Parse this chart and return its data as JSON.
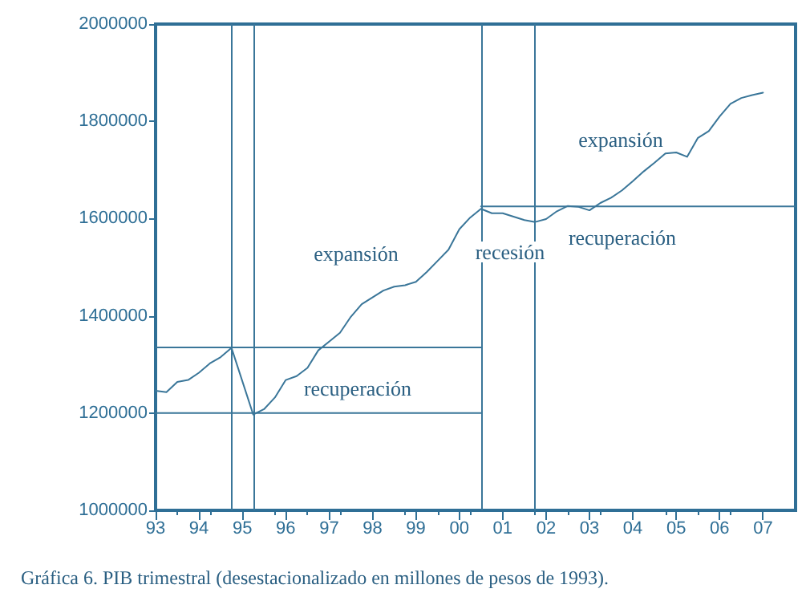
{
  "chart_data": {
    "type": "line",
    "title": "Gráfica 6. PIB trimestral (desestacionalizado en millones de pesos de 1993).",
    "series": [
      {
        "color": "#3a7699",
        "x": [
          1993.0,
          1993.25,
          1993.5,
          1993.75,
          1994.0,
          1994.25,
          1994.5,
          1994.75,
          1995.25,
          1995.5,
          1995.75,
          1996.0,
          1996.25,
          1996.5,
          1996.75,
          1997.0,
          1997.25,
          1997.5,
          1997.75,
          1998.0,
          1998.25,
          1998.5,
          1998.75,
          1999.0,
          1999.25,
          1999.5,
          1999.75,
          2000.0,
          2000.25,
          2000.5,
          2000.75,
          2001.0,
          2001.25,
          2001.5,
          2001.75,
          2002.0,
          2002.25,
          2002.5,
          2002.75,
          2003.0,
          2003.25,
          2003.5,
          2003.75,
          2004.0,
          2004.25,
          2004.5,
          2004.75,
          2005.0,
          2005.25,
          2005.5,
          2005.75,
          2006.0,
          2006.25,
          2006.5,
          2006.75,
          2007.0
        ],
        "values": [
          1246000,
          1243000,
          1264000,
          1268000,
          1283000,
          1302000,
          1315000,
          1334000,
          1197000,
          1208000,
          1232000,
          1268000,
          1276000,
          1293000,
          1329000,
          1347000,
          1365000,
          1398000,
          1424000,
          1438000,
          1452000,
          1460000,
          1463000,
          1470000,
          1490000,
          1513000,
          1536000,
          1578000,
          1602000,
          1620000,
          1611000,
          1611000,
          1604000,
          1597000,
          1593000,
          1599000,
          1615000,
          1626000,
          1624000,
          1617000,
          1632000,
          1643000,
          1658000,
          1677000,
          1697000,
          1715000,
          1734000,
          1736000,
          1727000,
          1766000,
          1780000,
          1810000,
          1836000,
          1848000,
          1854000,
          1859000
        ]
      },
      {
        "color": "#3a7699",
        "x": [
          1993,
          2000.5
        ],
        "values": [
          1335000,
          1335000
        ]
      },
      {
        "color": "#3a7699",
        "x": [
          1993,
          2000.5
        ],
        "values": [
          1200000,
          1200000
        ]
      },
      {
        "color": "#3a7699",
        "x": [
          2000.5,
          2007.75
        ],
        "values": [
          1625000,
          1625000
        ]
      }
    ],
    "xlim": [
      1993,
      2007.75
    ],
    "xticks": [
      {
        "value": 1993,
        "label": "93"
      },
      {
        "value": 1994,
        "label": "94"
      },
      {
        "value": 1995,
        "label": "95"
      },
      {
        "value": 1996,
        "label": "96"
      },
      {
        "value": 1997,
        "label": "97"
      },
      {
        "value": 1998,
        "label": "98"
      },
      {
        "value": 1999,
        "label": "99"
      },
      {
        "value": 2000,
        "label": "00"
      },
      {
        "value": 2001,
        "label": "01"
      },
      {
        "value": 2002,
        "label": "02"
      },
      {
        "value": 2003,
        "label": "03"
      },
      {
        "value": 2004,
        "label": "04"
      },
      {
        "value": 2005,
        "label": "05"
      },
      {
        "value": 2006,
        "label": "06"
      },
      {
        "value": 2007,
        "label": "07"
      }
    ],
    "ylim": [
      1000000,
      2000000
    ],
    "yticks": [
      1000000,
      1200000,
      1400000,
      1600000,
      1800000,
      2000000
    ],
    "ref_lines": [
      {
        "axis": "x",
        "value": 1994.75,
        "label": null,
        "color": "#3a7699"
      },
      {
        "axis": "x",
        "value": 1995.25,
        "label": null,
        "color": "#3a7699"
      },
      {
        "axis": "x",
        "value": 2000.5,
        "label": null,
        "color": "#3a7699"
      },
      {
        "axis": "x",
        "value": 2001.75,
        "label": null,
        "color": "#3a7699"
      }
    ],
    "annotations": [
      "expansión",
      "recuperación",
      "recesión",
      "expansión",
      "recuperación"
    ],
    "grid": false,
    "marker": "none",
    "line_style": "solid"
  }
}
